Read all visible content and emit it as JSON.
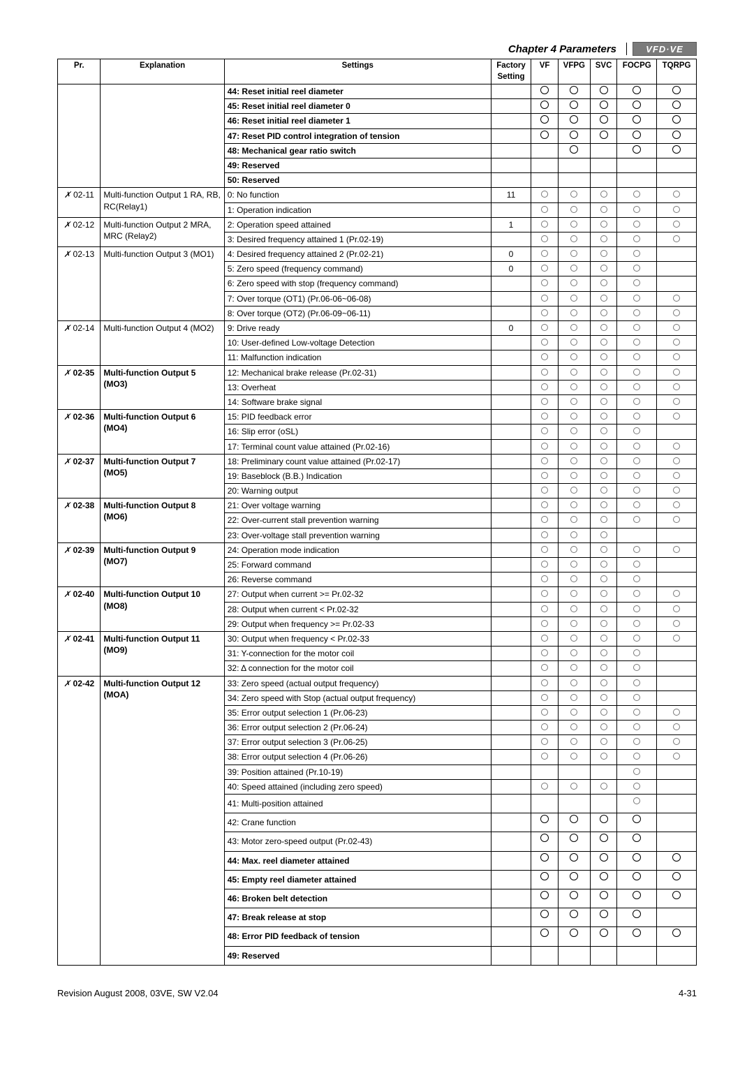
{
  "chapter_title": "Chapter 4 Parameters",
  "vfd_label": "VFD·VE",
  "footer_left": "Revision August 2008, 03VE, SW V2.04",
  "footer_right": "4-31",
  "headers": {
    "pr": "Pr.",
    "expl": "Explanation",
    "settings": "Settings",
    "factory": "Factory Setting",
    "vf": "VF",
    "vfpg": "VFPG",
    "svc": "SVC",
    "focpg": "FOCPG",
    "tqrpg": "TQRPG"
  },
  "top_rows": [
    {
      "s": "44: Reset initial reel diameter",
      "bold": true,
      "big": true,
      "m": [
        1,
        1,
        1,
        1,
        1
      ]
    },
    {
      "s": "45: Reset initial reel diameter 0",
      "bold": true,
      "big": true,
      "m": [
        1,
        1,
        1,
        1,
        1
      ]
    },
    {
      "s": "46: Reset initial reel diameter 1",
      "bold": true,
      "big": true,
      "m": [
        1,
        1,
        1,
        1,
        1
      ]
    },
    {
      "s": "47: Reset PID control integration of tension",
      "bold": true,
      "big": true,
      "m": [
        1,
        1,
        1,
        1,
        1
      ]
    },
    {
      "s": "48: Mechanical gear ratio switch",
      "bold": true,
      "big": true,
      "m": [
        0,
        1,
        0,
        1,
        1
      ]
    },
    {
      "s": "49: Reserved",
      "bold": true,
      "m": [
        0,
        0,
        0,
        0,
        0
      ]
    },
    {
      "s": "50: Reserved",
      "bold": true,
      "m": [
        0,
        0,
        0,
        0,
        0
      ]
    }
  ],
  "groups": [
    {
      "pr": "02-11",
      "expl": "Multi-function Output 1 RA, RB, RC(Relay1)",
      "rows": [
        {
          "s": "0: No function",
          "f": "11",
          "m": [
            2,
            2,
            2,
            2,
            2
          ]
        },
        {
          "s": "1: Operation indication",
          "m": [
            2,
            2,
            2,
            2,
            2
          ]
        }
      ]
    },
    {
      "pr": "02-12",
      "expl": "Multi-function Output 2 MRA, MRC (Relay2)",
      "rows": [
        {
          "s": "2: Operation speed attained",
          "f": "1",
          "m": [
            2,
            2,
            2,
            2,
            2
          ]
        },
        {
          "s": "3: Desired frequency attained 1 (Pr.02-19)",
          "m": [
            2,
            2,
            2,
            2,
            2
          ]
        }
      ]
    },
    {
      "pr": "02-13",
      "expl": "Multi-function Output 3 (MO1)",
      "rows": [
        {
          "s": "4: Desired frequency attained 2 (Pr.02-21)",
          "f": "0",
          "m": [
            2,
            2,
            2,
            2,
            0
          ]
        },
        {
          "s": "5: Zero speed (frequency command)",
          "f": "0",
          "m": [
            2,
            2,
            2,
            2,
            0
          ]
        },
        {
          "s": "6: Zero speed with stop (frequency command)",
          "m": [
            2,
            2,
            2,
            2,
            0
          ]
        },
        {
          "s": "7: Over torque (OT1) (Pr.06-06~06-08)",
          "m": [
            2,
            2,
            2,
            2,
            2
          ]
        },
        {
          "s": "8: Over torque (OT2) (Pr.06-09~06-11)",
          "m": [
            2,
            2,
            2,
            2,
            2
          ]
        }
      ]
    },
    {
      "pr": "02-14",
      "expl": "Multi-function Output 4 (MO2)",
      "rows": [
        {
          "s": "9: Drive ready",
          "f": "0",
          "m": [
            2,
            2,
            2,
            2,
            2
          ]
        },
        {
          "s": "10: User-defined Low-voltage Detection",
          "m": [
            2,
            2,
            2,
            2,
            2
          ]
        },
        {
          "s": "11: Malfunction indication",
          "m": [
            2,
            2,
            2,
            2,
            2
          ]
        }
      ]
    },
    {
      "pr": "02-35",
      "expl": "Multi-function Output 5 (MO3)",
      "exbold": true,
      "rows": [
        {
          "s": "12: Mechanical brake release (Pr.02-31)",
          "m": [
            2,
            2,
            2,
            2,
            2
          ]
        },
        {
          "s": "13: Overheat",
          "m": [
            2,
            2,
            2,
            2,
            2
          ]
        },
        {
          "s": "14: Software brake signal",
          "m": [
            2,
            2,
            2,
            2,
            2
          ]
        }
      ]
    },
    {
      "pr": "02-36",
      "expl": "Multi-function Output 6 (MO4)",
      "exbold": true,
      "rows": [
        {
          "s": "15: PID feedback error",
          "m": [
            2,
            2,
            2,
            2,
            2
          ]
        },
        {
          "s": "16: Slip error (oSL)",
          "m": [
            2,
            2,
            2,
            2,
            0
          ]
        },
        {
          "s": "17: Terminal count value attained (Pr.02-16)",
          "m": [
            2,
            2,
            2,
            2,
            2
          ]
        }
      ]
    },
    {
      "pr": "02-37",
      "expl": "Multi-function Output 7 (MO5)",
      "exbold": true,
      "rows": [
        {
          "s": "18: Preliminary count value attained (Pr.02-17)",
          "m": [
            2,
            2,
            2,
            2,
            2
          ]
        },
        {
          "s": "19: Baseblock (B.B.) Indication",
          "m": [
            2,
            2,
            2,
            2,
            2
          ]
        },
        {
          "s": "20: Warning output",
          "m": [
            2,
            2,
            2,
            2,
            2
          ]
        }
      ]
    },
    {
      "pr": "02-38",
      "expl": "Multi-function Output 8 (MO6)",
      "exbold": true,
      "rows": [
        {
          "s": "21: Over voltage warning",
          "m": [
            2,
            2,
            2,
            2,
            2
          ]
        },
        {
          "s": "22: Over-current stall prevention warning",
          "m": [
            2,
            2,
            2,
            2,
            2
          ]
        },
        {
          "s": "23: Over-voltage stall prevention warning",
          "m": [
            2,
            2,
            2,
            0,
            0
          ]
        }
      ]
    },
    {
      "pr": "02-39",
      "expl": "Multi-function Output 9 (MO7)",
      "exbold": true,
      "rows": [
        {
          "s": "24: Operation mode indication",
          "m": [
            2,
            2,
            2,
            2,
            2
          ]
        },
        {
          "s": "25: Forward command",
          "m": [
            2,
            2,
            2,
            2,
            0
          ]
        },
        {
          "s": "26: Reverse command",
          "m": [
            2,
            2,
            2,
            2,
            0
          ]
        }
      ]
    },
    {
      "pr": "02-40",
      "expl": "Multi-function Output 10 (MO8)",
      "exbold": true,
      "rows": [
        {
          "s": "27: Output when current >= Pr.02-32",
          "m": [
            2,
            2,
            2,
            2,
            2
          ]
        },
        {
          "s": "28: Output when current < Pr.02-32",
          "m": [
            2,
            2,
            2,
            2,
            2
          ]
        },
        {
          "s": "29: Output when frequency >= Pr.02-33",
          "m": [
            2,
            2,
            2,
            2,
            2
          ]
        }
      ]
    },
    {
      "pr": "02-41",
      "expl": "Multi-function Output 11 (MO9)",
      "exbold": true,
      "rows": [
        {
          "s": "30: Output when frequency < Pr.02-33",
          "m": [
            2,
            2,
            2,
            2,
            2
          ]
        },
        {
          "s": "31: Y-connection for the motor coil",
          "m": [
            2,
            2,
            2,
            2,
            0
          ]
        },
        {
          "s": "32: Δ connection for the motor coil",
          "m": [
            2,
            2,
            2,
            2,
            0
          ]
        }
      ]
    },
    {
      "pr": "02-42",
      "expl": "Multi-function Output 12 (MOA)",
      "exbold": true,
      "rows": [
        {
          "s": "33: Zero speed (actual output frequency)",
          "m": [
            2,
            2,
            2,
            2,
            0
          ]
        },
        {
          "s": "34: Zero speed with Stop (actual output frequency)",
          "m": [
            2,
            2,
            2,
            2,
            0
          ]
        },
        {
          "s": "35: Error output selection 1 (Pr.06-23)",
          "m": [
            2,
            2,
            2,
            2,
            2
          ]
        },
        {
          "s": "36: Error output selection 2 (Pr.06-24)",
          "m": [
            2,
            2,
            2,
            2,
            2
          ]
        },
        {
          "s": "37: Error output selection 3 (Pr.06-25)",
          "m": [
            2,
            2,
            2,
            2,
            2
          ]
        },
        {
          "s": "38: Error output selection 4 (Pr.06-26)",
          "m": [
            2,
            2,
            2,
            2,
            2
          ]
        },
        {
          "s": "39: Position attained  (Pr.10-19)",
          "m": [
            0,
            0,
            0,
            2,
            0
          ]
        },
        {
          "s": "40: Speed attained (including zero speed)",
          "m": [
            2,
            2,
            2,
            2,
            0
          ]
        },
        {
          "s": "41: Multi-position attained",
          "pad": true,
          "m": [
            0,
            0,
            0,
            2,
            0
          ]
        },
        {
          "s": "42: Crane function",
          "pad": true,
          "big": true,
          "m": [
            1,
            1,
            1,
            1,
            0
          ]
        },
        {
          "s": "43: Motor zero-speed output (Pr.02-43)",
          "pad": true,
          "big": true,
          "m": [
            1,
            1,
            1,
            1,
            0
          ]
        },
        {
          "s": "44: Max. reel diameter attained",
          "bold": true,
          "pad": true,
          "big": true,
          "m": [
            1,
            1,
            1,
            1,
            1
          ]
        },
        {
          "s": "45: Empty reel diameter attained",
          "bold": true,
          "pad": true,
          "big": true,
          "m": [
            1,
            1,
            1,
            1,
            1
          ]
        },
        {
          "s": "46: Broken belt detection",
          "bold": true,
          "pad": true,
          "big": true,
          "m": [
            1,
            1,
            1,
            1,
            1
          ]
        },
        {
          "s": "47: Break release at stop",
          "bold": true,
          "pad": true,
          "big": true,
          "m": [
            1,
            1,
            1,
            1,
            0
          ]
        },
        {
          "s": "48: Error PID feedback of tension",
          "bold": true,
          "pad": true,
          "big": true,
          "m": [
            1,
            1,
            1,
            1,
            1
          ]
        },
        {
          "s": "49: Reserved",
          "bold": true,
          "pad": true,
          "m": [
            0,
            0,
            0,
            0,
            0
          ]
        }
      ]
    }
  ]
}
